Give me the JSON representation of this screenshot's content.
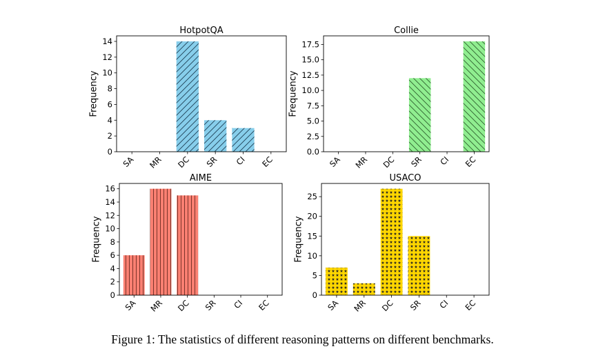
{
  "caption": "Figure 1: The statistics of different reasoning patterns on different benchmarks.",
  "chart_data": [
    {
      "type": "bar",
      "title": "HotpotQA",
      "ylabel": "Frequency",
      "xlabel": "",
      "categories": [
        "SA",
        "MR",
        "DC",
        "SR",
        "CI",
        "EC"
      ],
      "values": [
        0,
        0,
        14,
        4,
        3,
        0
      ],
      "ylim": [
        0,
        14.7
      ],
      "yticks": [
        0,
        2,
        4,
        6,
        8,
        10,
        12,
        14
      ],
      "ytick_labels": [
        "0",
        "2",
        "4",
        "6",
        "8",
        "10",
        "12",
        "14"
      ],
      "color": "#87ceeb",
      "hatch": "diagonal-forward",
      "grid": false
    },
    {
      "type": "bar",
      "title": "Collie",
      "ylabel": "Frequency",
      "xlabel": "",
      "categories": [
        "SA",
        "MR",
        "DC",
        "SR",
        "CI",
        "EC"
      ],
      "values": [
        0,
        0,
        0,
        12,
        0,
        18
      ],
      "ylim": [
        0,
        18.9
      ],
      "yticks": [
        0,
        2.5,
        5,
        7.5,
        10,
        12.5,
        15,
        17.5
      ],
      "ytick_labels": [
        "0.0",
        "2.5",
        "5.0",
        "7.5",
        "10.0",
        "12.5",
        "15.0",
        "17.5"
      ],
      "color": "#90ee90",
      "hatch": "diagonal-back",
      "grid": false
    },
    {
      "type": "bar",
      "title": "AIME",
      "ylabel": "Frequency",
      "xlabel": "",
      "categories": [
        "SA",
        "MR",
        "DC",
        "SR",
        "CI",
        "EC"
      ],
      "values": [
        6,
        16,
        15,
        0,
        0,
        0
      ],
      "ylim": [
        0,
        16.8
      ],
      "yticks": [
        0,
        2,
        4,
        6,
        8,
        10,
        12,
        14,
        16
      ],
      "ytick_labels": [
        "0",
        "2",
        "4",
        "6",
        "8",
        "10",
        "12",
        "14",
        "16"
      ],
      "color": "#fa8072",
      "hatch": "vertical",
      "grid": false
    },
    {
      "type": "bar",
      "title": "USACO",
      "ylabel": "Frequency",
      "xlabel": "",
      "categories": [
        "SA",
        "MR",
        "DC",
        "SR",
        "CI",
        "EC"
      ],
      "values": [
        7,
        3,
        27,
        15,
        0,
        0
      ],
      "ylim": [
        0,
        28.35
      ],
      "yticks": [
        0,
        5,
        10,
        15,
        20,
        25
      ],
      "ytick_labels": [
        "0",
        "5",
        "10",
        "15",
        "20",
        "25"
      ],
      "color": "#ffd700",
      "hatch": "stars",
      "grid": false
    }
  ]
}
